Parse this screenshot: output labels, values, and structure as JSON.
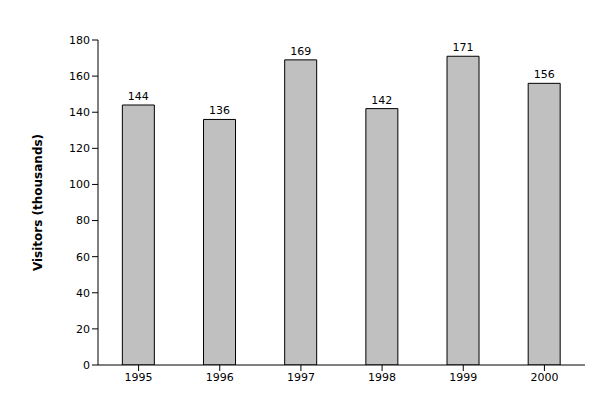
{
  "chart_data": {
    "type": "bar",
    "y_label": "Visitors (thousands)",
    "categories": [
      "1995",
      "1996",
      "1997",
      "1998",
      "1999",
      "2000"
    ],
    "values": [
      144,
      136,
      169,
      142,
      171,
      156
    ],
    "color": "#c0c0c0",
    "ylim": [
      0,
      180
    ],
    "yticks": [
      0,
      20,
      40,
      60,
      80,
      100,
      120,
      140,
      160,
      180
    ],
    "grid": false,
    "data_labels": true
  }
}
